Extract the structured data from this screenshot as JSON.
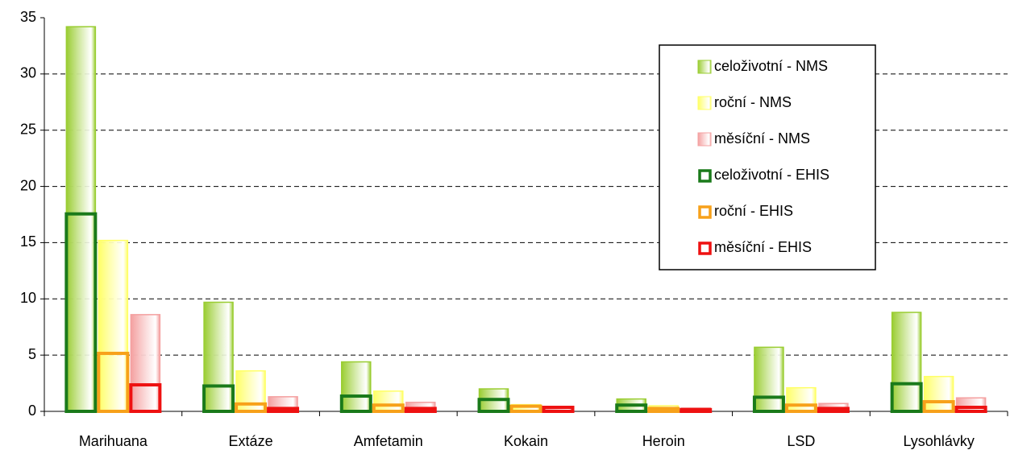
{
  "chart_data": {
    "type": "bar",
    "categories": [
      "Marihuana",
      "Extáze",
      "Amfetamin",
      "Kokain",
      "Heroin",
      "LSD",
      "Lysohlávky"
    ],
    "series": [
      {
        "name": "celoživotní - NMS",
        "color": "#9acd32",
        "style": "filled",
        "values": [
          34.2,
          9.7,
          4.4,
          2.0,
          1.1,
          5.7,
          8.8
        ]
      },
      {
        "name": "roční - NMS",
        "color": "#ffff66",
        "style": "filled",
        "values": [
          15.2,
          3.6,
          1.8,
          0.6,
          0.5,
          2.1,
          3.1
        ]
      },
      {
        "name": "měsíční - NMS",
        "color": "#f4a0a0",
        "style": "filled",
        "values": [
          8.6,
          1.3,
          0.8,
          0.4,
          0.3,
          0.7,
          1.2
        ]
      },
      {
        "name": "celoživotní - EHIS",
        "color": "#1a7a1a",
        "style": "outline",
        "values": [
          17.7,
          2.4,
          1.5,
          1.2,
          0.7,
          1.4,
          2.6
        ]
      },
      {
        "name": "roční - EHIS",
        "color": "#f7a11a",
        "style": "outline",
        "values": [
          5.3,
          0.8,
          0.7,
          0.6,
          0.4,
          0.7,
          1.0
        ]
      },
      {
        "name": "měsíční - EHIS",
        "color": "#ee1111",
        "style": "outline",
        "values": [
          2.5,
          0.4,
          0.4,
          0.5,
          0.3,
          0.4,
          0.5
        ]
      }
    ],
    "ylim": [
      0,
      35
    ],
    "yticks": [
      0,
      5,
      10,
      15,
      20,
      25,
      30,
      35
    ],
    "grid": true,
    "legend": "upper right"
  }
}
